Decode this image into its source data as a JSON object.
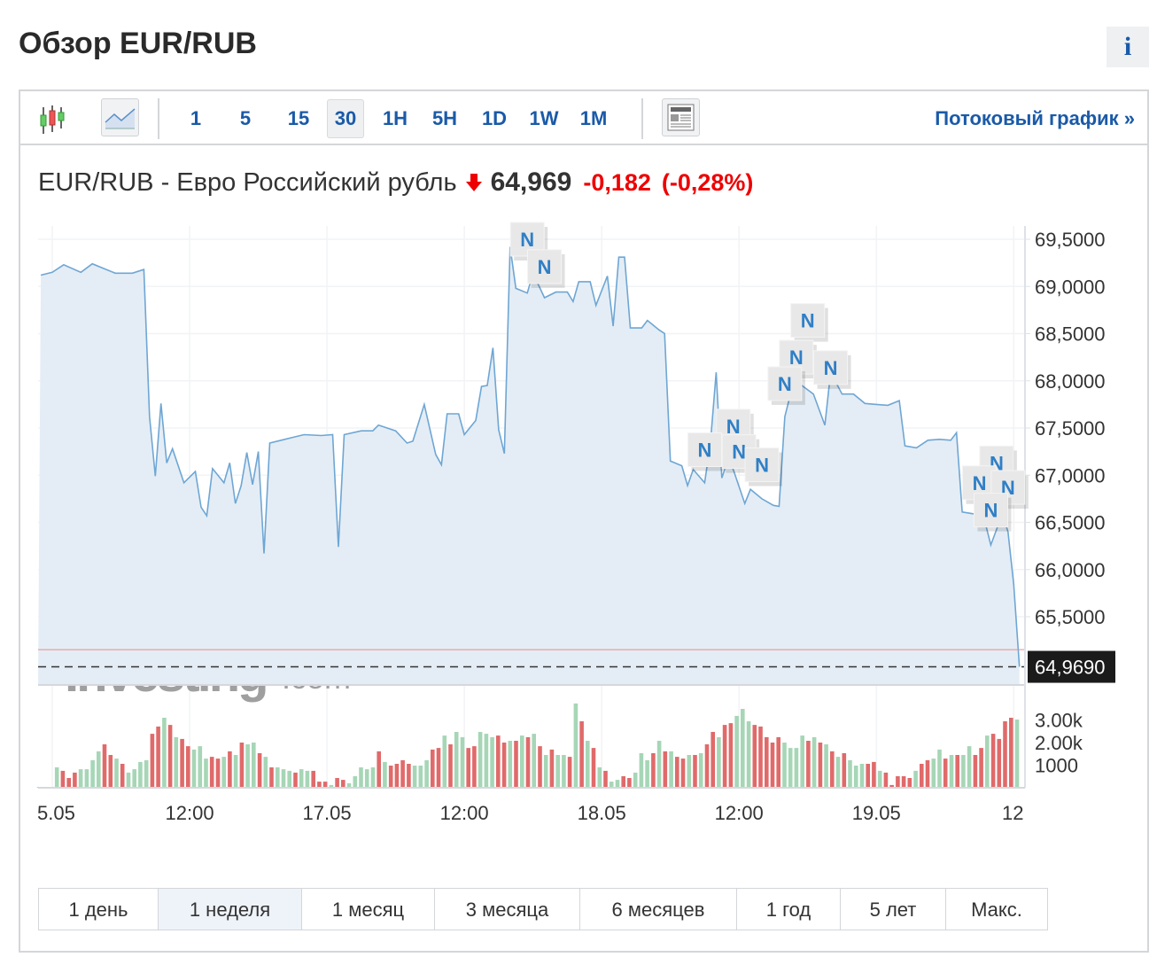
{
  "page": {
    "title": "Обзор EUR/RUB",
    "info_label": "i"
  },
  "toolbar": {
    "chart_types": [
      {
        "icon": "candlestick-icon"
      },
      {
        "icon": "area-chart-icon",
        "selected": true
      }
    ],
    "timeframes": [
      {
        "label": "1"
      },
      {
        "label": "5"
      },
      {
        "label": "15"
      },
      {
        "label": "30",
        "selected": true
      },
      {
        "label": "1H"
      },
      {
        "label": "5H"
      },
      {
        "label": "1D"
      },
      {
        "label": "1W"
      },
      {
        "label": "1M"
      }
    ],
    "news_toggle_icon": "news-icon",
    "stream_link": "Потоковый график »"
  },
  "quote": {
    "name": "EUR/RUB - Евро Российский рубль",
    "direction_icon": "arrow-down-icon",
    "last": "64,969",
    "change": "-0,182",
    "change_pct": "(-0,28%)"
  },
  "colors": {
    "line": "#6ea6d4",
    "fill": "#e4edf5",
    "up": "#a6d6b6",
    "down": "#e06a6a",
    "link": "#1a5aa8",
    "negative": "#ee0000"
  },
  "watermark": "Investing.com",
  "chart_data": {
    "type": "area",
    "ylim": [
      64.7,
      69.65
    ],
    "y_ticks": [
      "69,5000",
      "69,0000",
      "68,5000",
      "68,0000",
      "67,5000",
      "67,0000",
      "66,5000",
      "66,0000",
      "65,5000"
    ],
    "y_tick_values": [
      69.5,
      69.0,
      68.5,
      68.0,
      67.5,
      67.0,
      66.5,
      66.0,
      65.5
    ],
    "x_ticks": [
      {
        "label": "5.05",
        "at": "16.05 00:00"
      },
      {
        "label": "12:00",
        "at": "16.05 12:00"
      },
      {
        "label": "17.05",
        "at": "17.05 00:00"
      },
      {
        "label": "12:00",
        "at": "17.05 12:00"
      },
      {
        "label": "18.05",
        "at": "18.05 00:00"
      },
      {
        "label": "12:00",
        "at": "18.05 12:00"
      },
      {
        "label": "19.05",
        "at": "19.05 00:00"
      },
      {
        "label": "12",
        "at": "19.05 12:00"
      }
    ],
    "current_value": 64.969,
    "current_label": "64,9690",
    "previous_close": 65.151,
    "grid": true,
    "points": [
      [
        "15.05 23:00",
        69.12
      ],
      [
        "16.05 00:00",
        69.15
      ],
      [
        "16.05 01:00",
        69.23
      ],
      [
        "16.05 02:30",
        69.15
      ],
      [
        "16.05 03:30",
        69.24
      ],
      [
        "16.05 04:30",
        69.19
      ],
      [
        "16.05 05:30",
        69.14
      ],
      [
        "16.05 07:00",
        69.14
      ],
      [
        "16.05 08:00",
        69.18
      ],
      [
        "16.05 08:30",
        67.62
      ],
      [
        "16.05 09:00",
        66.99
      ],
      [
        "16.05 09:30",
        67.76
      ],
      [
        "16.05 10:00",
        67.13
      ],
      [
        "16.05 10:30",
        67.28
      ],
      [
        "16.05 11:30",
        66.92
      ],
      [
        "16.05 12:30",
        67.04
      ],
      [
        "16.05 13:00",
        66.66
      ],
      [
        "16.05 13:30",
        66.57
      ],
      [
        "16.05 14:00",
        67.07
      ],
      [
        "16.05 15:00",
        66.92
      ],
      [
        "16.05 15:30",
        67.13
      ],
      [
        "16.05 16:00",
        66.7
      ],
      [
        "16.05 16:30",
        66.89
      ],
      [
        "16.05 17:00",
        67.24
      ],
      [
        "16.05 17:30",
        66.9
      ],
      [
        "16.05 18:00",
        67.25
      ],
      [
        "16.05 18:30",
        66.17
      ],
      [
        "16.05 19:00",
        67.34
      ],
      [
        "16.05 20:00",
        67.37
      ],
      [
        "16.05 21:00",
        67.4
      ],
      [
        "16.05 22:00",
        67.43
      ],
      [
        "16.05 23:30",
        67.42
      ],
      [
        "17.05 00:30",
        67.43
      ],
      [
        "17.05 01:00",
        66.24
      ],
      [
        "17.05 01:30",
        67.43
      ],
      [
        "17.05 03:00",
        67.47
      ],
      [
        "17.05 04:00",
        67.47
      ],
      [
        "17.05 04:30",
        67.53
      ],
      [
        "17.05 06:00",
        67.47
      ],
      [
        "17.05 07:00",
        67.34
      ],
      [
        "17.05 07:30",
        67.36
      ],
      [
        "17.05 08:30",
        67.75
      ],
      [
        "17.05 09:30",
        67.22
      ],
      [
        "17.05 10:00",
        67.11
      ],
      [
        "17.05 10:30",
        67.65
      ],
      [
        "17.05 11:30",
        67.65
      ],
      [
        "17.05 12:00",
        67.43
      ],
      [
        "17.05 13:00",
        67.58
      ],
      [
        "17.05 13:30",
        67.94
      ],
      [
        "17.05 14:00",
        67.95
      ],
      [
        "17.05 14:30",
        68.35
      ],
      [
        "17.05 15:00",
        67.48
      ],
      [
        "17.05 15:30",
        67.23
      ],
      [
        "17.05 16:00",
        69.42
      ],
      [
        "17.05 16:30",
        68.98
      ],
      [
        "17.05 17:30",
        68.93
      ],
      [
        "17.05 18:00",
        69.14
      ],
      [
        "17.05 19:00",
        68.88
      ],
      [
        "17.05 20:00",
        68.94
      ],
      [
        "17.05 21:00",
        68.94
      ],
      [
        "17.05 21:30",
        68.84
      ],
      [
        "17.05 22:00",
        69.05
      ],
      [
        "17.05 23:00",
        69.05
      ],
      [
        "17.05 23:30",
        68.8
      ],
      [
        "18.05 00:30",
        69.11
      ],
      [
        "18.05 01:00",
        68.58
      ],
      [
        "18.05 01:30",
        69.31
      ],
      [
        "18.05 02:00",
        69.31
      ],
      [
        "18.05 02:30",
        68.56
      ],
      [
        "18.05 03:30",
        68.56
      ],
      [
        "18.05 04:00",
        68.64
      ],
      [
        "18.05 05:00",
        68.54
      ],
      [
        "18.05 05:30",
        68.5
      ],
      [
        "18.05 06:00",
        67.15
      ],
      [
        "18.05 07:00",
        67.1
      ],
      [
        "18.05 07:30",
        66.89
      ],
      [
        "18.05 08:00",
        67.06
      ],
      [
        "18.05 09:00",
        66.92
      ],
      [
        "18.05 09:30",
        67.34
      ],
      [
        "18.05 10:00",
        68.09
      ],
      [
        "18.05 10:30",
        66.97
      ],
      [
        "18.05 11:00",
        67.15
      ],
      [
        "18.05 11:30",
        67.06
      ],
      [
        "18.05 12:30",
        66.7
      ],
      [
        "18.05 13:00",
        66.85
      ],
      [
        "18.05 14:00",
        66.75
      ],
      [
        "18.05 15:00",
        66.68
      ],
      [
        "18.05 15:30",
        66.67
      ],
      [
        "18.05 16:00",
        67.62
      ],
      [
        "18.05 16:30",
        67.86
      ],
      [
        "18.05 17:30",
        67.95
      ],
      [
        "18.05 18:30",
        67.86
      ],
      [
        "18.05 19:30",
        67.53
      ],
      [
        "18.05 20:00",
        68.09
      ],
      [
        "18.05 21:00",
        67.86
      ],
      [
        "18.05 22:00",
        67.86
      ],
      [
        "18.05 23:00",
        67.76
      ],
      [
        "19.05 00:00",
        67.75
      ],
      [
        "19.05 01:00",
        67.74
      ],
      [
        "19.05 02:00",
        67.79
      ],
      [
        "19.05 02:30",
        67.31
      ],
      [
        "19.05 03:30",
        67.29
      ],
      [
        "19.05 04:30",
        67.37
      ],
      [
        "19.05 05:30",
        67.38
      ],
      [
        "19.05 06:30",
        67.37
      ],
      [
        "19.05 07:00",
        67.45
      ],
      [
        "19.05 07:30",
        66.61
      ],
      [
        "19.05 08:30",
        66.59
      ],
      [
        "19.05 09:30",
        66.5
      ],
      [
        "19.05 10:00",
        66.26
      ],
      [
        "19.05 11:00",
        66.59
      ],
      [
        "19.05 11:30",
        66.4
      ],
      [
        "19.05 12:00",
        65.84
      ],
      [
        "19.05 12:30",
        64.97
      ]
    ],
    "news_markers": [
      {
        "label": "N",
        "at": "17.05 17:30",
        "value": 69.5
      },
      {
        "label": "N",
        "at": "17.05 19:00",
        "value": 69.21
      },
      {
        "label": "N",
        "at": "18.05 18:00",
        "value": 68.64
      },
      {
        "label": "N",
        "at": "18.05 17:00",
        "value": 68.25
      },
      {
        "label": "N",
        "at": "18.05 20:00",
        "value": 68.14
      },
      {
        "label": "N",
        "at": "18.05 16:00",
        "value": 67.97
      },
      {
        "label": "N",
        "at": "18.05 11:30",
        "value": 67.52
      },
      {
        "label": "N",
        "at": "18.05 09:00",
        "value": 67.27
      },
      {
        "label": "N",
        "at": "18.05 12:00",
        "value": 67.25
      },
      {
        "label": "N",
        "at": "18.05 14:00",
        "value": 67.11
      },
      {
        "label": "N",
        "at": "19.05 10:30",
        "value": 67.13
      },
      {
        "label": "N",
        "at": "19.05 09:00",
        "value": 66.92
      },
      {
        "label": "N",
        "at": "19.05 11:30",
        "value": 66.87
      },
      {
        "label": "N",
        "at": "19.05 10:00",
        "value": 66.63
      }
    ],
    "volume": {
      "ylim": [
        0,
        3800
      ],
      "y_ticks": [
        "3.00k",
        "2.00k",
        "1000"
      ],
      "y_tick_values": [
        3000,
        2000,
        1000
      ],
      "values": [
        40,
        40,
        40,
        900,
        750,
        430,
        670,
        820,
        820,
        1220,
        1610,
        1920,
        1450,
        1290,
        1060,
        670,
        820,
        1140,
        1220,
        2390,
        2710,
        3100,
        2780,
        2240,
        2160,
        1840,
        1690,
        1840,
        1290,
        1370,
        1290,
        1370,
        1610,
        1450,
        2000,
        1920,
        2000,
        1530,
        1370,
        900,
        900,
        820,
        750,
        670,
        820,
        750,
        750,
        270,
        270,
        120,
        430,
        350,
        200,
        510,
        900,
        820,
        900,
        1610,
        1140,
        980,
        1060,
        1220,
        1060,
        980,
        980,
        1220,
        1690,
        1760,
        2310,
        1920,
        2470,
        2240,
        1760,
        1840,
        2470,
        2390,
        2240,
        2310,
        2000,
        2080,
        2080,
        2310,
        2240,
        2390,
        1840,
        1450,
        1690,
        1450,
        1450,
        1370,
        3730,
        2940,
        2080,
        1760,
        900,
        750,
        270,
        350,
        510,
        430,
        670,
        1530,
        1220,
        1530,
        2080,
        1610,
        1610,
        1370,
        1290,
        1450,
        1450,
        1530,
        1920,
        2470,
        2240,
        2780,
        2860,
        3180,
        3490,
        2940,
        2780,
        2710,
        2240,
        2000,
        2240,
        2000,
        1760,
        1760,
        2310,
        2080,
        2240,
        2000,
        1920,
        1610,
        1370,
        1530,
        1220,
        980,
        1060,
        1060,
        1140,
        750,
        670,
        120,
        510,
        510,
        430,
        750,
        1060,
        1220,
        1290,
        1690,
        1290,
        1450,
        1450,
        1450,
        1840,
        1450,
        1760,
        2310,
        2390,
        2160,
        2940,
        3100,
        3020
      ],
      "directions": "ggrgrrrggggrrgrggggrrgrgrrgggrrgrgrggrgrgggrggrrrgrrgggggrgrrrrgggrrgrggrrgggrrgrgrgrgrggrgrgrgrggrrgggrgrgrrgrgrrgrrgggrrrrrggggrgrgrgrgggrrgrrrrrgrrggrgrggrrgrrrrgrr"
    }
  },
  "ranges": [
    {
      "label": "1 день"
    },
    {
      "label": "1 неделя",
      "selected": true
    },
    {
      "label": "1 месяц"
    },
    {
      "label": "3 месяца"
    },
    {
      "label": "6 месяцев"
    },
    {
      "label": "1 год"
    },
    {
      "label": "5 лет"
    },
    {
      "label": "Макс."
    }
  ]
}
